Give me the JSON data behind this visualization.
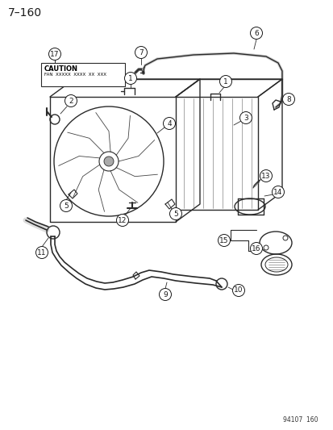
{
  "title": "7–160",
  "bg_color": "#ffffff",
  "line_color": "#2a2a2a",
  "label_color": "#1a1a1a",
  "footer": "94107  160",
  "caution_line1": "CAUTION",
  "caution_line2": "FAN  XXXXX  XXXX  XX  XXX",
  "part_labels": [
    1,
    2,
    3,
    4,
    5,
    6,
    7,
    8,
    9,
    10,
    11,
    12,
    13,
    14,
    15,
    16,
    17
  ],
  "title_fontsize": 10,
  "label_fontsize": 6.5
}
